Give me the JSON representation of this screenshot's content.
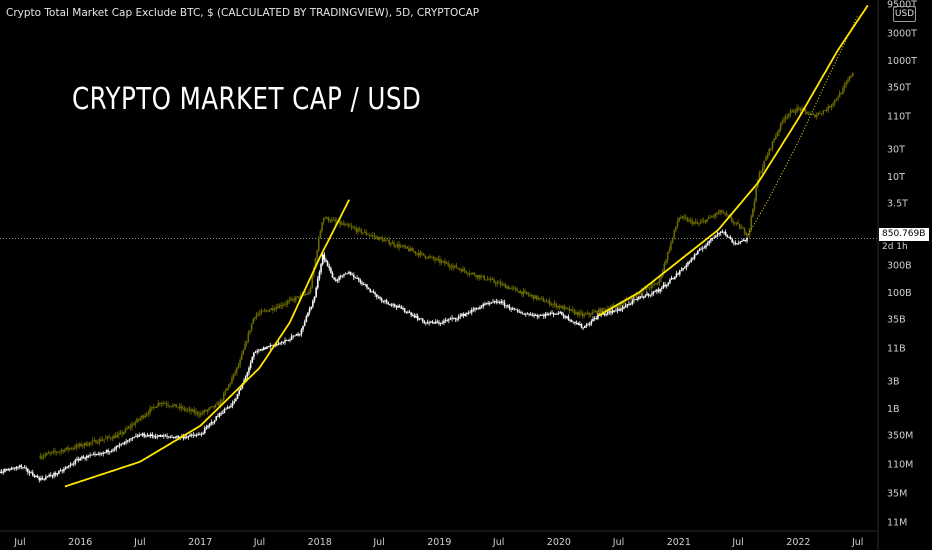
{
  "header": {
    "title": "Crypto Total Market Cap Exclude BTC, $ (CALCULATED BY TRADINGVIEW), 5D, CRYPTOCAP"
  },
  "overlay_title": "CRYPTO MARKET CAP / USD",
  "currency_button": "USD",
  "price_label": {
    "value": "850.769B",
    "countdown": "2d 1h"
  },
  "colors": {
    "background": "#000000",
    "candles_main": "#ffffff",
    "candles_overlay": "#6b6b00",
    "curve": "#ffe600",
    "price_line": "#bdbdbd"
  },
  "chart_data": {
    "type": "line",
    "title": "Crypto Total Market Cap Exclude BTC, $ (CALCULATED BY TRADINGVIEW), 5D, CRYPTOCAP",
    "xlabel": "",
    "ylabel": "",
    "y_scale": "log",
    "y_unit": "USD",
    "xlim": [
      "2015-05-01",
      "2022-09-01"
    ],
    "ylim": [
      8000000,
      9500000000000000
    ],
    "x_ticks": [
      "Jul",
      "2016",
      "Jul",
      "2017",
      "Jul",
      "2018",
      "Jul",
      "2019",
      "Jul",
      "2020",
      "Jul",
      "2021",
      "Jul",
      "2022",
      "Jul"
    ],
    "y_ticks": [
      "9500T",
      "3000T",
      "1000T",
      "350T",
      "110T",
      "30T",
      "10T",
      "3.5T",
      "300B",
      "100B",
      "35B",
      "11B",
      "3B",
      "1B",
      "350M",
      "110M",
      "35M",
      "11M"
    ],
    "last_value_label": "850.769B",
    "series": [
      {
        "x": [
          "2015-05-01",
          "2015-07-01",
          "2015-09-01",
          "2015-11-01",
          "2016-01-01",
          "2016-03-01",
          "2016-05-01",
          "2016-07-01",
          "2016-09-01",
          "2016-11-01",
          "2017-01-01",
          "2017-03-01",
          "2017-04-15",
          "2017-05-15",
          "2017-06-15",
          "2017-08-01",
          "2017-09-15",
          "2017-11-01",
          "2017-12-15",
          "2018-01-10",
          "2018-02-15",
          "2018-04-01",
          "2018-05-15",
          "2018-07-01",
          "2018-08-15",
          "2018-10-01",
          "2018-11-20",
          "2019-01-01",
          "2019-03-01",
          "2019-05-15",
          "2019-07-01",
          "2019-09-01",
          "2019-11-01",
          "2020-01-01",
          "2020-03-15",
          "2020-05-01",
          "2020-07-01",
          "2020-09-01",
          "2020-11-01",
          "2021-01-01",
          "2021-03-01",
          "2021-05-10",
          "2021-06-20",
          "2021-08-01"
        ],
        "values": [
          80000000,
          100000000,
          60000000,
          80000000,
          140000000,
          160000000,
          230000000,
          350000000,
          330000000,
          320000000,
          350000000,
          800000000,
          1300000000,
          3000000000,
          9000000000,
          12000000000,
          14000000000,
          20000000000,
          80000000000,
          450000000000,
          160000000000,
          220000000000,
          140000000000,
          80000000000,
          60000000000,
          45000000000,
          30000000000,
          30000000000,
          38000000000,
          60000000000,
          70000000000,
          45000000000,
          40000000000,
          45000000000,
          25000000000,
          40000000000,
          50000000000,
          80000000000,
          110000000000,
          220000000000,
          500000000000,
          1200000000000,
          700000000000,
          850000000000
        ]
      },
      {
        "x": [
          "2015-09-01",
          "2016-01-01",
          "2016-05-01",
          "2016-09-01",
          "2017-01-01",
          "2017-03-01",
          "2017-05-01",
          "2017-06-15",
          "2017-09-01",
          "2017-12-01",
          "2018-01-10",
          "2020-03-15",
          "2020-07-01",
          "2020-09-01",
          "2020-11-01",
          "2021-01-01",
          "2021-03-01",
          "2021-05-10",
          "2021-08-01",
          "2021-09-01",
          "2021-10-15",
          "2021-11-20",
          "2022-01-01",
          "2022-02-15",
          "2022-04-01",
          "2022-05-15",
          "2022-06-20"
        ],
        "values": [
          150000000,
          230000000,
          350000000,
          1300000000,
          800000000,
          1200000000,
          6000000000,
          40000000000,
          60000000000,
          100000000000,
          2000000000000,
          40000000000,
          60000000000,
          100000000000,
          150000000000,
          2000000000000,
          1500000000000,
          2500000000000,
          1000000000000,
          10000000000000,
          40000000000000,
          110000000000000,
          150000000000000,
          110000000000000,
          150000000000000,
          300000000000000,
          700000000000000
        ]
      },
      {
        "x": [
          "2015-11-15",
          "2016-07-01",
          "2017-01-01",
          "2017-07-01",
          "2017-10-01",
          "2018-01-01",
          "2018-04-01"
        ],
        "values": [
          45000000,
          120000000,
          500000000,
          5000000000,
          30000000000,
          400000000000,
          4000000000000
        ]
      },
      {
        "x": [
          "2020-05-01",
          "2020-09-01",
          "2021-01-01",
          "2021-05-01",
          "2021-09-01",
          "2022-01-01",
          "2022-05-01",
          "2022-08-01"
        ],
        "values": [
          40000000000,
          100000000000,
          350000000000,
          1200000000000,
          8000000000000,
          100000000000000,
          1500000000000000,
          9000000000000000
        ]
      }
    ]
  }
}
